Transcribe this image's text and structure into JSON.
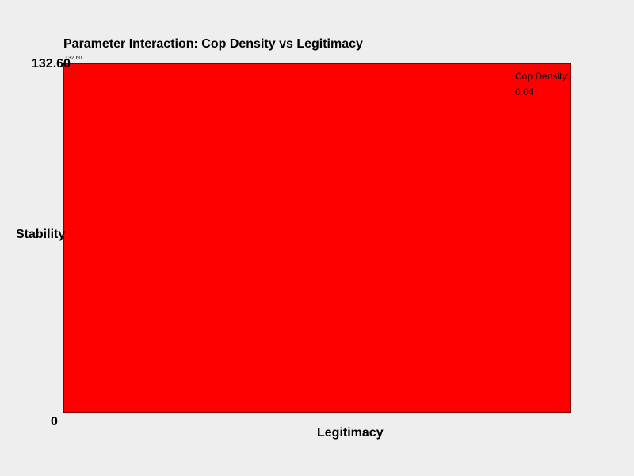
{
  "chart_data": {
    "type": "bar",
    "title": "Parameter Interaction: Cop Density vs Legitimacy",
    "xlabel": "Legitimacy",
    "ylabel": "Stability",
    "ylim": [
      0,
      132.6
    ],
    "y_tick_labels": [
      "0",
      "132.60"
    ],
    "series": [
      {
        "name": "Cop Density:",
        "legend_value": "0.04",
        "values": [
          132.6
        ],
        "value_labels": [
          "132.60"
        ],
        "color": "#ff0000"
      }
    ],
    "categories": [
      ""
    ],
    "grid": false,
    "legend_position": "top-right"
  }
}
